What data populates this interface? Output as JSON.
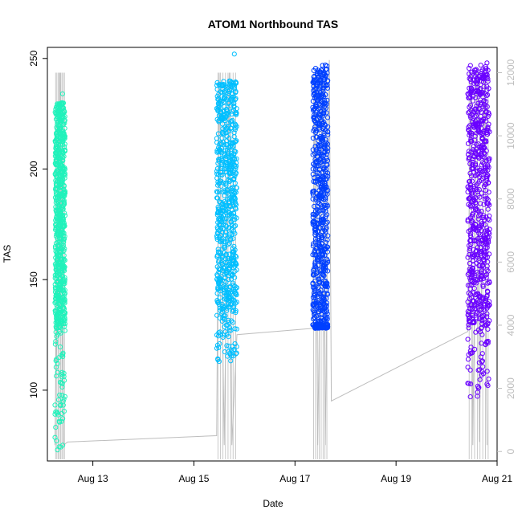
{
  "chart_data": {
    "type": "scatter",
    "title": "ATOM1 Northbound TAS",
    "xlabel": "Date",
    "ylabel": "TAS",
    "x_unit": "days (August)",
    "xlim": [
      12.1,
      21.0
    ],
    "ylim": [
      68,
      255
    ],
    "y_ticks": [
      100,
      150,
      200,
      250
    ],
    "x_ticks": [
      {
        "value": 13,
        "label": "Aug 13"
      },
      {
        "value": 15,
        "label": "Aug 15"
      },
      {
        "value": 17,
        "label": "Aug 17"
      },
      {
        "value": 19,
        "label": "Aug 19"
      },
      {
        "value": 21,
        "label": "Aug 21"
      }
    ],
    "y2lim": [
      -300,
      12800
    ],
    "y2_ticks": [
      0,
      2000,
      4000,
      6000,
      8000,
      10000,
      12000
    ],
    "grid": false,
    "series": [
      {
        "color": "#20F2BB",
        "x_range": [
          12.25,
          12.45
        ],
        "tas_min": 73,
        "tas_max": 234,
        "tas_typical": [
          128,
          230
        ]
      },
      {
        "color": "#00BFFF",
        "x_range": [
          15.45,
          15.85
        ],
        "tas_min": 113,
        "tas_max": 252,
        "tas_typical": [
          135,
          240
        ]
      },
      {
        "color": "#0040FF",
        "x_range": [
          17.35,
          17.65
        ],
        "tas_min": 128,
        "tas_max": 247,
        "tas_typical": [
          130,
          247
        ]
      },
      {
        "color": "#6A00FF",
        "x_range": [
          20.42,
          20.85
        ],
        "tas_min": 97,
        "tas_max": 248,
        "tas_typical": [
          130,
          247
        ]
      }
    ],
    "secondary_line": {
      "color": "#bdbdbd",
      "axis": "right",
      "points": [
        [
          12.25,
          200
        ],
        [
          12.35,
          12000
        ],
        [
          12.42,
          200
        ],
        [
          12.5,
          300
        ],
        [
          15.45,
          500
        ],
        [
          15.5,
          12000
        ],
        [
          15.6,
          200
        ],
        [
          15.7,
          12000
        ],
        [
          15.75,
          200
        ],
        [
          15.85,
          3700
        ],
        [
          17.35,
          3900
        ],
        [
          17.4,
          12000
        ],
        [
          17.45,
          200
        ],
        [
          17.55,
          12000
        ],
        [
          17.6,
          200
        ],
        [
          17.68,
          12400
        ],
        [
          17.72,
          1600
        ],
        [
          20.42,
          3800
        ],
        [
          20.48,
          12000
        ],
        [
          20.52,
          200
        ],
        [
          20.6,
          12000
        ],
        [
          20.65,
          300
        ],
        [
          20.75,
          12000
        ],
        [
          20.8,
          200
        ]
      ]
    }
  }
}
